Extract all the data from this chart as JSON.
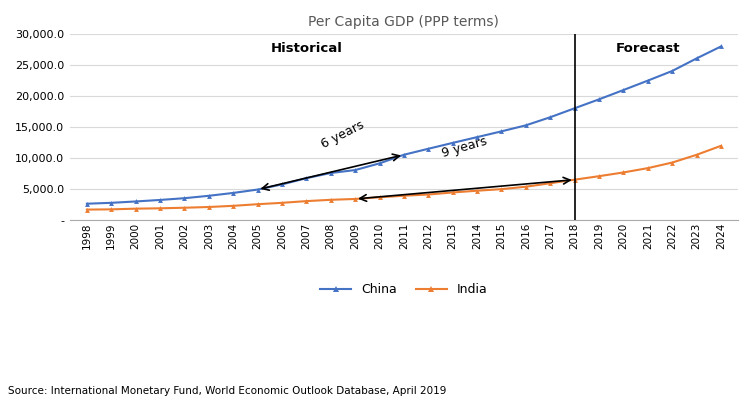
{
  "title": "Per Capita GDP (PPP terms)",
  "source_text": "Source: International Monetary Fund, World Economic Outlook Database, April 2019",
  "years": [
    1998,
    1999,
    2000,
    2001,
    2002,
    2003,
    2004,
    2005,
    2006,
    2007,
    2008,
    2009,
    2010,
    2011,
    2012,
    2013,
    2014,
    2015,
    2016,
    2017,
    2018,
    2019,
    2020,
    2021,
    2022,
    2023,
    2024
  ],
  "china": [
    2659,
    2801,
    3021,
    3266,
    3549,
    3936,
    4398,
    4941,
    5771,
    6777,
    7619,
    8087,
    9171,
    10561,
    11526,
    12476,
    13407,
    14338,
    15309,
    16617,
    18065,
    19505,
    21006,
    22526,
    24084,
    26109,
    28040
  ],
  "india": [
    1709,
    1747,
    1858,
    1918,
    2009,
    2128,
    2317,
    2578,
    2801,
    3078,
    3288,
    3425,
    3696,
    3950,
    4144,
    4476,
    4757,
    5010,
    5399,
    5966,
    6538,
    7102,
    7705,
    8400,
    9300,
    10550,
    12000
  ],
  "china_color": "#4472c4",
  "india_color": "#ed7d31",
  "forecast_year": 2018,
  "historical_label": "Historical",
  "forecast_label": "Forecast",
  "annotation_6yr_text": "6 years",
  "annotation_9yr_text": "9 years",
  "ylim_min": 0,
  "ylim_max": 30000,
  "ytick_step": 5000,
  "background_color": "#ffffff",
  "grid_color": "#d9d9d9",
  "title_color": "#595959"
}
